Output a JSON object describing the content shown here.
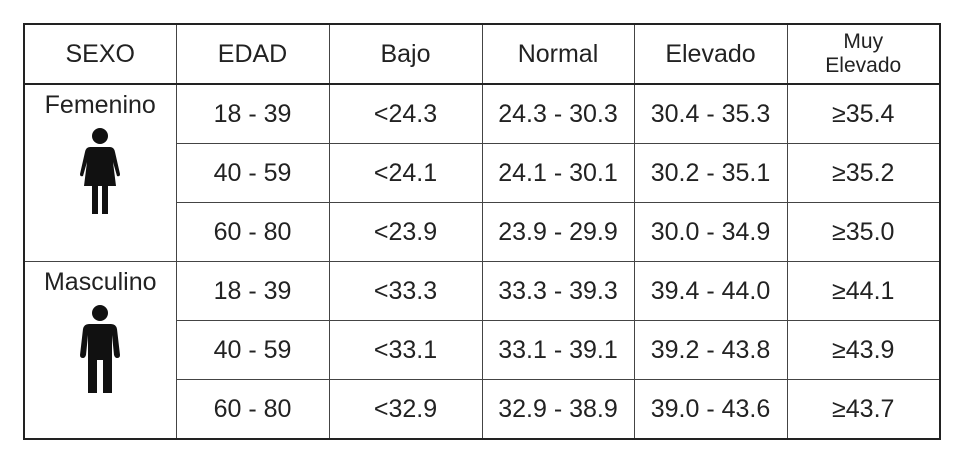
{
  "header": {
    "columns": [
      "SEXO",
      "EDAD",
      "Bajo",
      "Normal",
      "Elevado",
      "Muy Elevado"
    ]
  },
  "groups": [
    {
      "sex": "Femenino",
      "rows": [
        [
          "18 - 39",
          "<24.3",
          "24.3 - 30.3",
          "30.4 - 35.3",
          "≥35.4"
        ],
        [
          "40 - 59",
          "<24.1",
          "24.1 - 30.1",
          "30.2 - 35.1",
          "≥35.2"
        ],
        [
          "60 - 80",
          "<23.9",
          "23.9 - 29.9",
          "30.0 - 34.9",
          "≥35.0"
        ]
      ]
    },
    {
      "sex": "Masculino",
      "rows": [
        [
          "18 - 39",
          "<33.3",
          "33.3 - 39.3",
          "39.4 - 44.0",
          "≥44.1"
        ],
        [
          "40 - 59",
          "<33.1",
          "33.1 - 39.1",
          "39.2 - 43.8",
          "≥43.9"
        ],
        [
          "60 - 80",
          "<32.9",
          "32.9 - 38.9",
          "39.0 - 43.6",
          "≥43.7"
        ]
      ]
    }
  ]
}
